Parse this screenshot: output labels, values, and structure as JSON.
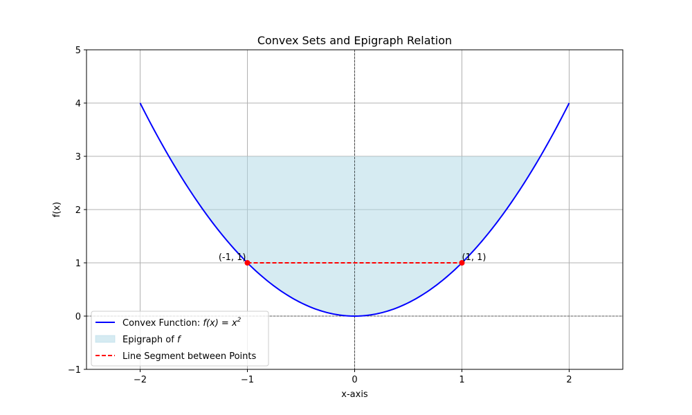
{
  "chart_data": {
    "type": "line",
    "title": "Convex Sets and Epigraph Relation",
    "xlabel": "x-axis",
    "ylabel": "f(x)",
    "xlim": [
      -2.5,
      2.5
    ],
    "ylim": [
      -1,
      5
    ],
    "x_ticks": [
      -2,
      -1,
      0,
      1,
      2
    ],
    "y_ticks": [
      -1,
      0,
      1,
      2,
      3,
      4,
      5
    ],
    "x_tick_labels": [
      "−2",
      "−1",
      "0",
      "1",
      "2"
    ],
    "y_tick_labels": [
      "−1",
      "0",
      "1",
      "2",
      "3",
      "4",
      "5"
    ],
    "grid": true,
    "reference_lines": {
      "x": 0,
      "y": 0,
      "style": "dashed",
      "color": "#000000"
    },
    "legend_position": "lower-left",
    "series": [
      {
        "name": "Convex Function: f(x) = x²",
        "kind": "line",
        "color": "#0000ff",
        "function": "x^2",
        "x_range": [
          -2,
          2
        ]
      },
      {
        "name": "Epigraph of f",
        "kind": "fill",
        "color": "#add8e6",
        "alpha": 0.5,
        "lower_function": "x^2",
        "upper_value": 3,
        "x_range": [
          -1.732,
          1.732
        ]
      },
      {
        "name": "Line Segment between Points",
        "kind": "line",
        "style": "dashed",
        "color": "#ff0000",
        "x": [
          -1,
          1
        ],
        "y": [
          1,
          1
        ]
      }
    ],
    "points": [
      {
        "x": -1,
        "y": 1,
        "label": "(-1, 1)",
        "color": "#ff0000"
      },
      {
        "x": 1,
        "y": 1,
        "label": "(1, 1)",
        "color": "#ff0000"
      }
    ],
    "legend_labels": [
      {
        "prefix": "Convex Function: ",
        "math": "f(x) = x",
        "sup": "2"
      },
      {
        "prefix": "Epigraph of ",
        "math": "f",
        "sup": ""
      },
      {
        "prefix": "Line Segment between Points",
        "math": "",
        "sup": ""
      }
    ]
  }
}
